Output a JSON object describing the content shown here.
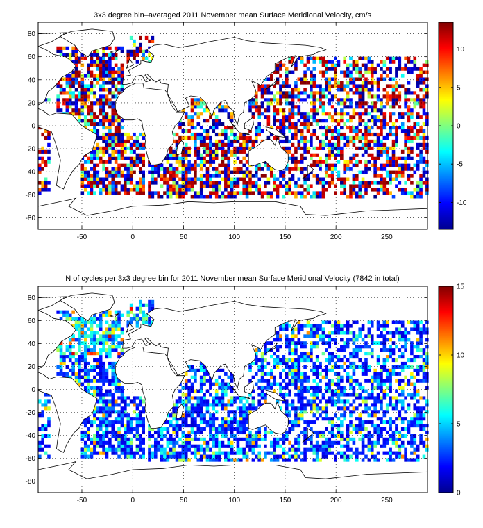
{
  "chart_data": [
    {
      "type": "heatmap",
      "title": "3x3 degree bin–averaged 2011 November mean Surface Meridional Velocity, cm/s",
      "xlim": [
        -93,
        290
      ],
      "ylim": [
        -90,
        90
      ],
      "xticks": [
        -50,
        0,
        50,
        100,
        150,
        200,
        250
      ],
      "yticks": [
        80,
        60,
        40,
        20,
        0,
        -20,
        -40,
        -60,
        -80
      ],
      "xtick_labels": [
        "-50",
        "0",
        "50",
        "100",
        "150",
        "200",
        "250"
      ],
      "ytick_labels": [
        "80",
        "60",
        "40",
        "20",
        "0",
        "-20",
        "-40",
        "-60",
        "-80"
      ],
      "grid": true,
      "bin_size_deg": 3,
      "colormap": "jet",
      "colorbar": {
        "range": [
          -13.5,
          13.5
        ],
        "ticks": [
          10,
          5,
          0,
          -5,
          -10
        ],
        "tick_labels": [
          "10",
          "5",
          "0",
          "-5",
          "-10"
        ],
        "placement": "right"
      },
      "value_pattern": "noisy velocity field: most bins saturate near the colormap extremes, with positive and negative values interleaved across all oceans"
    },
    {
      "type": "heatmap",
      "title": "N of cycles per 3x3 degree bin for 2011 November mean Surface Meridional Velocity (7842 in total)",
      "xlim": [
        -93,
        290
      ],
      "ylim": [
        -90,
        90
      ],
      "xticks": [
        -50,
        0,
        50,
        100,
        150,
        200,
        250
      ],
      "yticks": [
        80,
        60,
        40,
        20,
        0,
        -20,
        -40,
        -60,
        -80
      ],
      "xtick_labels": [
        "-50",
        "0",
        "50",
        "100",
        "150",
        "200",
        "250"
      ],
      "ytick_labels": [
        "80",
        "60",
        "40",
        "20",
        "0",
        "-20",
        "-40",
        "-60",
        "-80"
      ],
      "grid": true,
      "bin_size_deg": 3,
      "colormap": "jet",
      "colorbar": {
        "range": [
          0,
          15
        ],
        "ticks": [
          15,
          10,
          5,
          0
        ],
        "tick_labels": [
          "15",
          "10",
          "5",
          "0"
        ],
        "placement": "right"
      },
      "total_cycles": 7842,
      "value_pattern": "counts mostly 1-4 per bin (blue), with higher counts (up to ~13) in the North Atlantic"
    }
  ]
}
